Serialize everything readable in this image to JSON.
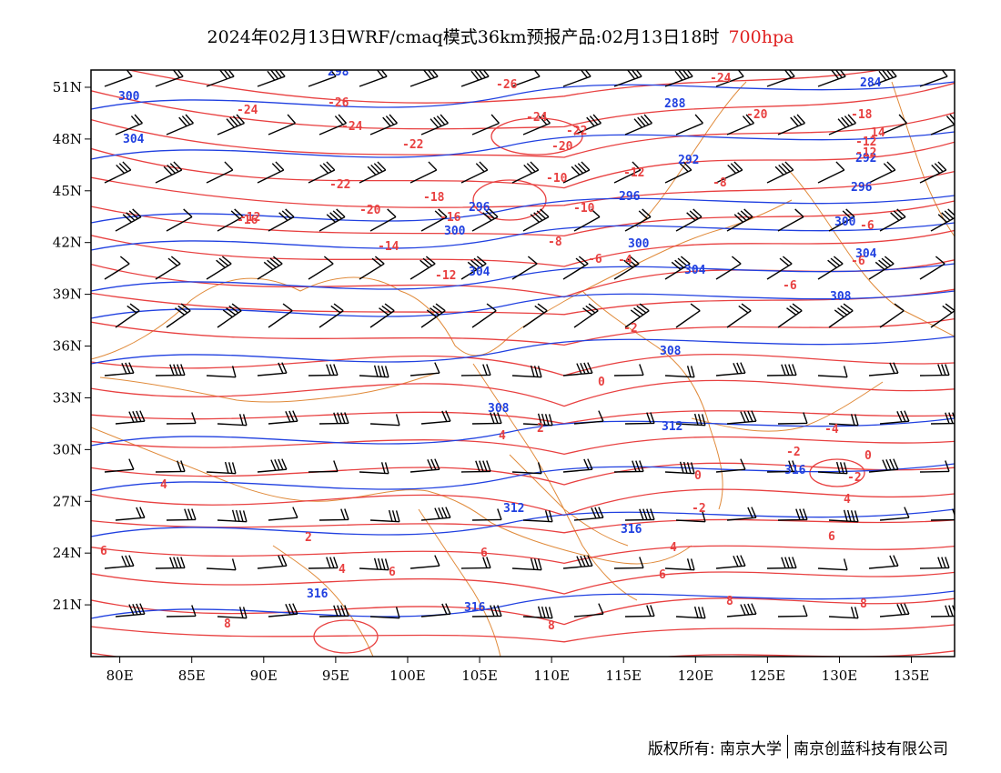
{
  "title": {
    "main": "2024年02月13日WRF/cmaq模式36km预报产品:02月13日18时",
    "level": "700hpa"
  },
  "colors": {
    "temperature": "#e84040",
    "height": "#2040e0",
    "wind": "#000000",
    "border": "#e08a3a",
    "level_text": "#e02020"
  },
  "map": {
    "lon_range": [
      78,
      138
    ],
    "lat_range": [
      18,
      52
    ],
    "x_ticks": [
      "80E",
      "85E",
      "90E",
      "95E",
      "100E",
      "105E",
      "110E",
      "115E",
      "120E",
      "125E",
      "130E",
      "135E"
    ],
    "y_ticks": [
      "51N",
      "48N",
      "45N",
      "42N",
      "39N",
      "36N",
      "33N",
      "30N",
      "27N",
      "24N",
      "21N"
    ],
    "height_labels": [
      "300",
      "298",
      "304",
      "292",
      "296",
      "300",
      "304",
      "308",
      "312",
      "316",
      "288",
      "284",
      "296",
      "300",
      "304",
      "308",
      "316",
      "312",
      "296"
    ],
    "temp_labels": [
      "-26",
      "-24",
      "-22",
      "-20",
      "-18",
      "-16",
      "-14",
      "-12",
      "-10",
      "-8",
      "-6",
      "-4",
      "-2",
      "0",
      "2",
      "4",
      "6",
      "8",
      "12",
      "14",
      "16"
    ]
  },
  "footer": {
    "copyright": "版权所有: 南京大学",
    "company": "南京创蓝科技有限公司"
  }
}
